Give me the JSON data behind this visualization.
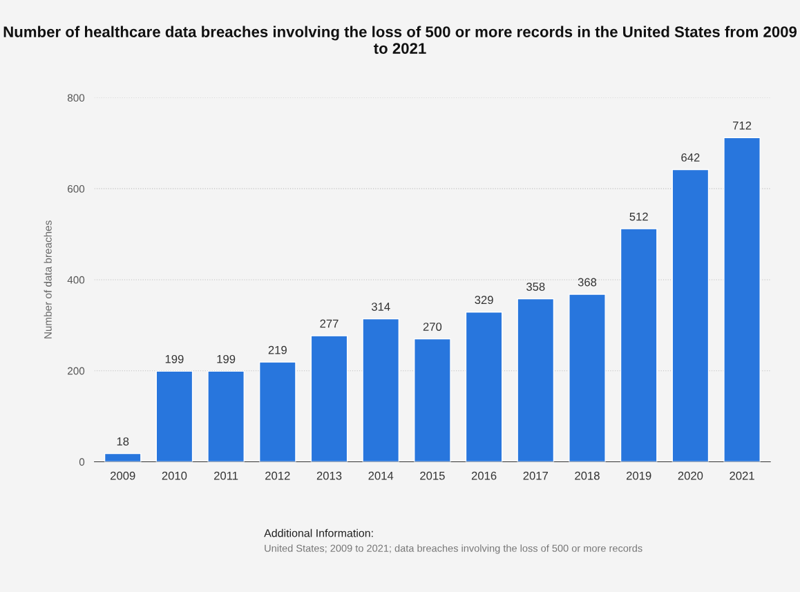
{
  "chart_data": {
    "type": "bar",
    "title": "Number of healthcare data breaches involving the loss of 500 or more records in the United States from 2009 to 2021",
    "ylabel": "Number of data breaches",
    "categories": [
      "2009",
      "2010",
      "2011",
      "2012",
      "2013",
      "2014",
      "2015",
      "2016",
      "2017",
      "2018",
      "2019",
      "2020",
      "2021"
    ],
    "values": [
      18,
      199,
      199,
      219,
      277,
      314,
      270,
      329,
      358,
      368,
      512,
      642,
      712
    ],
    "color": "#2876dd",
    "ylim": [
      0,
      800
    ],
    "yticks": [
      0,
      200,
      400,
      600,
      800
    ],
    "grid": "y",
    "data_labels": true,
    "annotations": [
      "Additional Information:",
      "United States; 2009 to 2021; data breaches involving the loss of 500 or more records"
    ]
  }
}
